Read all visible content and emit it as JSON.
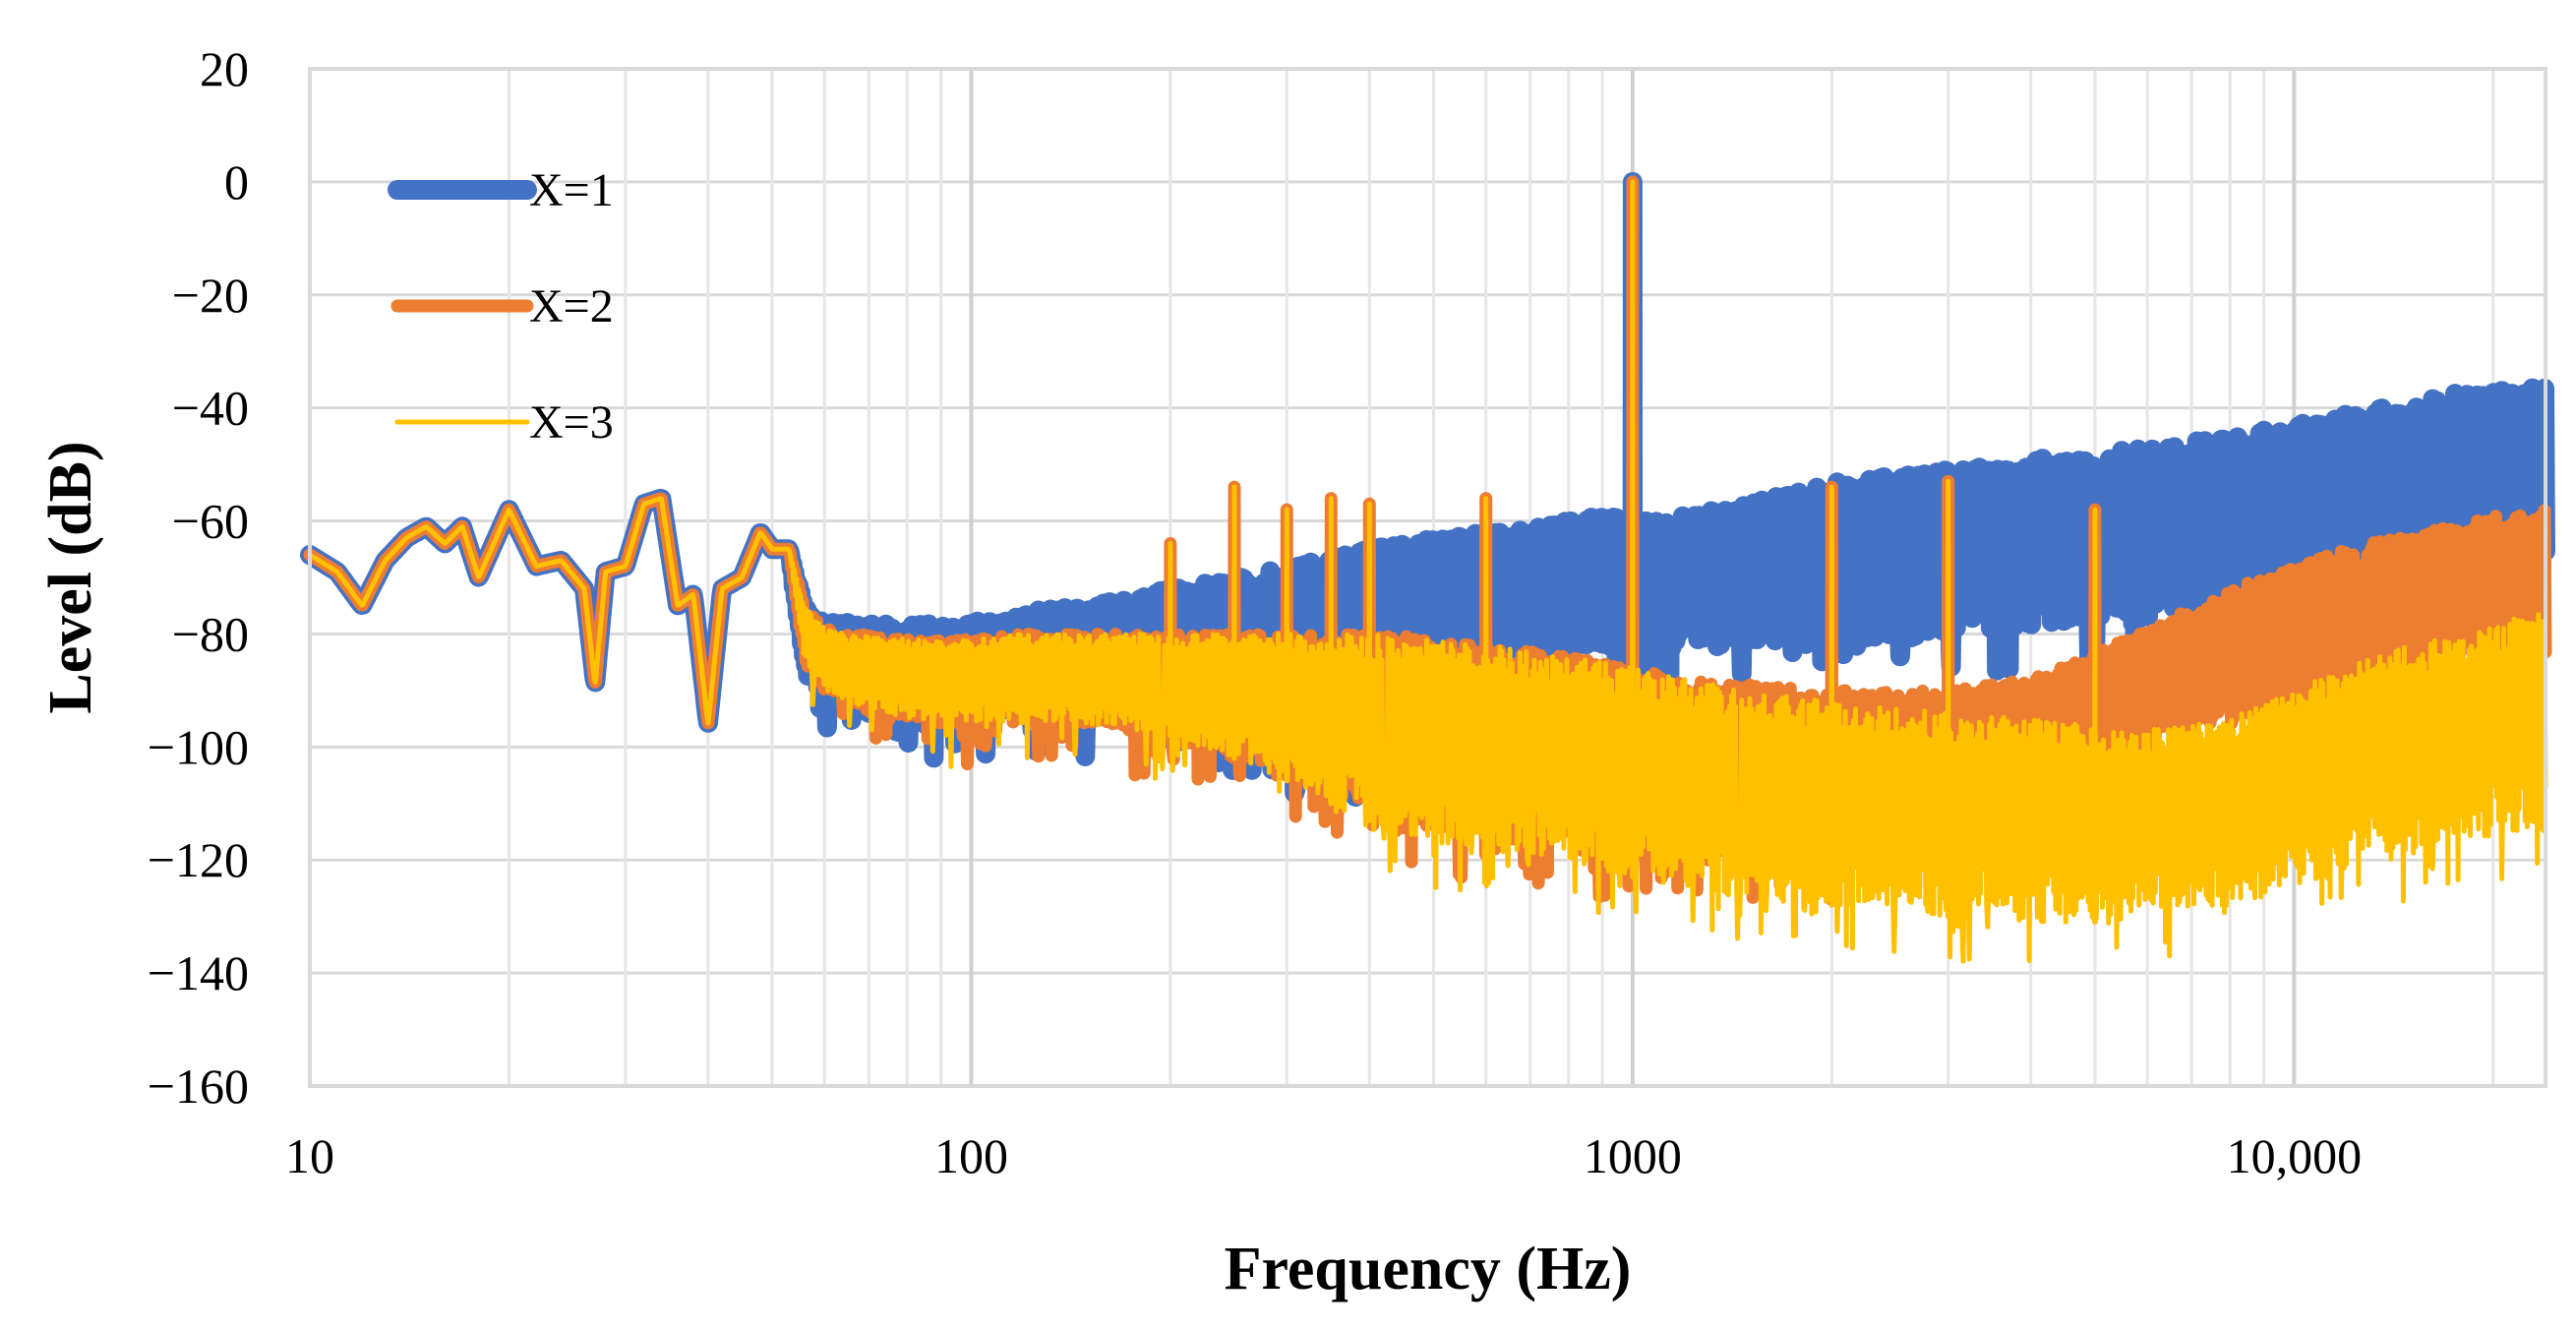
{
  "chart_data": {
    "type": "line",
    "title": "",
    "xlabel": "Frequency (Hz)",
    "ylabel": "Level (dB)",
    "xscale": "log",
    "xlim": [
      10,
      24000
    ],
    "ylim": [
      -160,
      20
    ],
    "x_major_ticks": [
      10,
      100,
      1000,
      10000
    ],
    "x_tick_labels": [
      "10",
      "100",
      "1000",
      "10,000"
    ],
    "y_ticks": [
      20,
      0,
      -20,
      -40,
      -60,
      -80,
      -100,
      -120,
      -140,
      -160
    ],
    "y_tick_labels": [
      "20",
      "0",
      "−20",
      "−40",
      "−60",
      "−80",
      "−100",
      "−120",
      "−140",
      "−160"
    ],
    "grid": true,
    "legend_position": "top-left",
    "series": [
      {
        "name": "X=1",
        "color": "#4472C4",
        "x": [
          10,
          11,
          12,
          13,
          14,
          15,
          16,
          17,
          18,
          20,
          22,
          24,
          26,
          27,
          28,
          30,
          32,
          34,
          36,
          38,
          40,
          42,
          45,
          48,
          50,
          53,
          56,
          60,
          65,
          70,
          80,
          90,
          100,
          120,
          150,
          200,
          250,
          300,
          350,
          400,
          450,
          500,
          600,
          700,
          800,
          900,
          1000,
          1100,
          1200,
          1500,
          2000,
          2500,
          3000,
          4000,
          5000,
          6000,
          8000,
          10000,
          12000,
          15000,
          18000,
          20000,
          24000
        ],
        "peak": [
          -66,
          -69,
          -75,
          -67,
          -63,
          -61,
          -64,
          -61,
          -70,
          -58,
          -68,
          -67,
          -72,
          -89,
          -69,
          -68,
          -57,
          -56,
          -75,
          -73,
          -96,
          -72,
          -70,
          -62,
          -65,
          -65,
          -75,
          -78,
          -78,
          -78,
          -78,
          -78,
          -78,
          -76,
          -75,
          -72,
          -70,
          -68,
          -66,
          -65,
          -64,
          -63,
          -62,
          -61,
          -60,
          -59,
          -60,
          -60,
          -59,
          -57,
          -53,
          -52,
          -51,
          -49,
          -48,
          -47,
          -45,
          -43,
          -41,
          -39,
          -37,
          -37,
          -36
        ],
        "floor": [
          -66,
          -69,
          -75,
          -67,
          -63,
          -61,
          -64,
          -61,
          -70,
          -58,
          -68,
          -67,
          -72,
          -89,
          -69,
          -68,
          -57,
          -56,
          -75,
          -73,
          -96,
          -72,
          -70,
          -62,
          -65,
          -65,
          -88,
          -92,
          -93,
          -94,
          -94,
          -94,
          -94,
          -94,
          -94,
          -95,
          -97,
          -100,
          -104,
          -105,
          -98,
          -92,
          -87,
          -84,
          -83,
          -82,
          -83,
          -83,
          -82,
          -82,
          -82,
          -81,
          -80,
          -79,
          -77,
          -76,
          -75,
          -74,
          -73,
          -72,
          -71,
          -70,
          -70
        ],
        "spikes": [
          [
            1000,
            0
          ]
        ]
      },
      {
        "name": "X=2",
        "color": "#ED7D31",
        "x": [
          10,
          11,
          12,
          13,
          14,
          15,
          16,
          17,
          18,
          20,
          22,
          24,
          26,
          27,
          28,
          30,
          32,
          34,
          36,
          38,
          40,
          42,
          45,
          48,
          50,
          53,
          56,
          60,
          65,
          70,
          80,
          90,
          100,
          120,
          150,
          200,
          250,
          300,
          350,
          400,
          450,
          500,
          600,
          700,
          800,
          900,
          1000,
          1100,
          1200,
          1500,
          2000,
          2500,
          3000,
          4000,
          5000,
          6000,
          8000,
          10000,
          12000,
          15000,
          18000,
          20000,
          24000
        ],
        "peak": [
          -66,
          -69,
          -75,
          -67,
          -63,
          -61,
          -64,
          -61,
          -70,
          -58,
          -68,
          -67,
          -72,
          -89,
          -69,
          -68,
          -57,
          -56,
          -75,
          -73,
          -96,
          -72,
          -70,
          -62,
          -65,
          -65,
          -75,
          -79,
          -80,
          -80,
          -81,
          -81,
          -81,
          -80,
          -80,
          -80,
          -80,
          -80,
          -80,
          -80,
          -80,
          -81,
          -82,
          -83,
          -84,
          -85,
          -86,
          -87,
          -88,
          -89,
          -90,
          -90,
          -90,
          -88,
          -83,
          -79,
          -72,
          -68,
          -65,
          -62,
          -60,
          -59,
          -58
        ],
        "floor": [
          -66,
          -69,
          -75,
          -67,
          -63,
          -61,
          -64,
          -61,
          -70,
          -58,
          -68,
          -67,
          -72,
          -89,
          -69,
          -68,
          -57,
          -56,
          -75,
          -73,
          -96,
          -72,
          -70,
          -62,
          -65,
          -65,
          -85,
          -90,
          -92,
          -94,
          -95,
          -96,
          -96,
          -96,
          -96,
          -98,
          -102,
          -105,
          -108,
          -110,
          -112,
          -114,
          -116,
          -117,
          -118,
          -119,
          -120,
          -120,
          -120,
          -120,
          -120,
          -118,
          -115,
          -110,
          -105,
          -100,
          -95,
          -92,
          -90,
          -88,
          -86,
          -85,
          -84
        ],
        "spikes": [
          [
            1000,
            0
          ],
          [
            250,
            -54
          ],
          [
            200,
            -64
          ],
          [
            300,
            -58
          ],
          [
            350,
            -56
          ],
          [
            400,
            -57
          ],
          [
            600,
            -56
          ],
          [
            2000,
            -54
          ],
          [
            3000,
            -53
          ],
          [
            5000,
            -58
          ]
        ]
      },
      {
        "name": "X=3",
        "color": "#FFC000",
        "x": [
          10,
          11,
          12,
          13,
          14,
          15,
          16,
          17,
          18,
          20,
          22,
          24,
          26,
          27,
          28,
          30,
          32,
          34,
          36,
          38,
          40,
          42,
          45,
          48,
          50,
          53,
          56,
          60,
          65,
          70,
          80,
          90,
          100,
          120,
          150,
          200,
          250,
          300,
          350,
          400,
          450,
          500,
          600,
          700,
          800,
          900,
          1000,
          1100,
          1200,
          1500,
          2000,
          2500,
          3000,
          4000,
          5000,
          6000,
          8000,
          10000,
          12000,
          15000,
          18000,
          20000,
          24000
        ],
        "peak": [
          -66,
          -69,
          -75,
          -67,
          -63,
          -61,
          -64,
          -61,
          -70,
          -58,
          -68,
          -67,
          -72,
          -89,
          -69,
          -68,
          -57,
          -56,
          -75,
          -73,
          -96,
          -72,
          -70,
          -62,
          -65,
          -65,
          -75,
          -79,
          -80,
          -80,
          -81,
          -81,
          -81,
          -80,
          -80,
          -80,
          -80,
          -80,
          -80,
          -80,
          -80,
          -81,
          -82,
          -83,
          -84,
          -85,
          -86,
          -87,
          -88,
          -90,
          -92,
          -93,
          -94,
          -95,
          -96,
          -97,
          -95,
          -90,
          -86,
          -82,
          -80,
          -78,
          -76
        ],
        "floor": [
          -66,
          -69,
          -75,
          -67,
          -63,
          -61,
          -64,
          -61,
          -70,
          -58,
          -68,
          -67,
          -72,
          -89,
          -69,
          -68,
          -57,
          -56,
          -75,
          -73,
          -96,
          -72,
          -70,
          -62,
          -65,
          -65,
          -85,
          -90,
          -92,
          -94,
          -95,
          -96,
          -96,
          -96,
          -96,
          -98,
          -102,
          -106,
          -110,
          -113,
          -115,
          -117,
          -118,
          -120,
          -121,
          -122,
          -123,
          -124,
          -125,
          -127,
          -128,
          -129,
          -130,
          -131,
          -131,
          -130,
          -128,
          -125,
          -122,
          -119,
          -117,
          -116,
          -115
        ],
        "spikes": [
          [
            1000,
            0
          ],
          [
            250,
            -54
          ],
          [
            200,
            -64
          ],
          [
            300,
            -58
          ],
          [
            350,
            -56
          ],
          [
            400,
            -57
          ],
          [
            600,
            -56
          ],
          [
            2000,
            -54
          ],
          [
            3000,
            -53
          ],
          [
            5000,
            -58
          ]
        ]
      }
    ]
  }
}
